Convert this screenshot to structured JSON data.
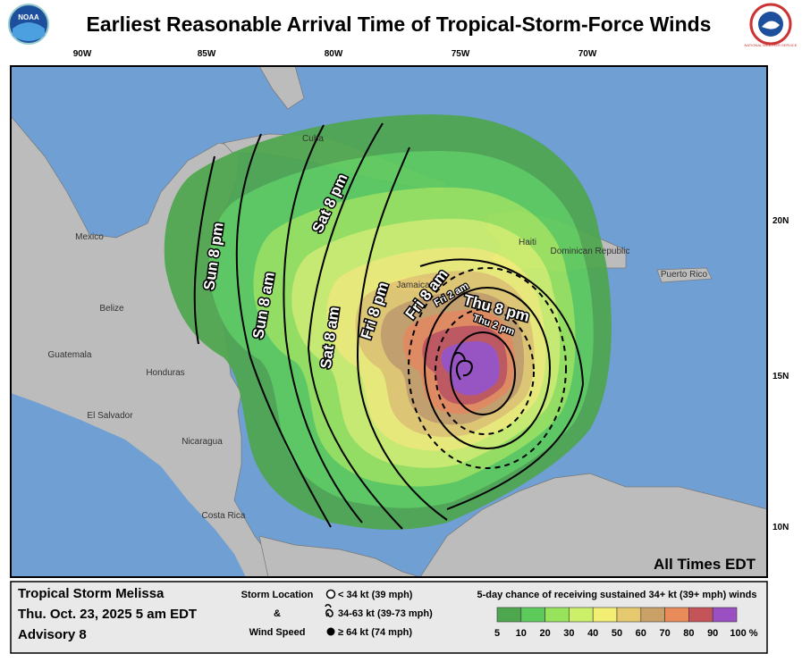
{
  "header": {
    "title": "Earliest Reasonable Arrival Time of Tropical-Storm-Force Winds",
    "logo_left": "NOAA",
    "logo_right": "NATIONAL WEATHER SERVICE"
  },
  "map": {
    "longitude_labels": [
      "90W",
      "85W",
      "80W",
      "75W",
      "70W"
    ],
    "latitude_labels": [
      "20N",
      "15N",
      "10N"
    ],
    "places": [
      "Mexico",
      "Belize",
      "Guatemala",
      "Honduras",
      "El Salvador",
      "Nicaragua",
      "Costa Rica",
      "Cuba",
      "Jamaica",
      "Haiti",
      "Dominican Republic",
      "Puerto Rico"
    ],
    "contour_labels": [
      "Sun 8 pm",
      "Sun 8 am",
      "Sat 8 pm",
      "Sat 8 am",
      "Fri 8 pm",
      "Fri 8 am",
      "Fri 2 am",
      "Thu 8 pm",
      "Thu 2 pm"
    ],
    "time_zone_note": "All Times EDT"
  },
  "footer": {
    "storm_name": "Tropical Storm Melissa",
    "date": "Thu. Oct. 23, 2025  5 am EDT",
    "advisory": "Advisory 8",
    "legend_title": [
      "Storm Location",
      "&",
      "Wind Speed"
    ],
    "legend_items": [
      "< 34 kt (39 mph)",
      "34-63 kt (39-73 mph)",
      "≥ 64 kt (74 mph)"
    ],
    "scale_title": "5-day chance of receiving sustained 34+ kt (39+ mph) winds",
    "scale_labels": [
      "5",
      "10",
      "20",
      "30",
      "40",
      "50",
      "60",
      "70",
      "80",
      "90",
      "100 %"
    ],
    "scale_colors": [
      "#4ea64e",
      "#5ccb5c",
      "#98e35c",
      "#cdf06a",
      "#f2ef74",
      "#e6c96e",
      "#c9a067",
      "#e88a5a",
      "#c4545a",
      "#9a4fc2"
    ]
  }
}
